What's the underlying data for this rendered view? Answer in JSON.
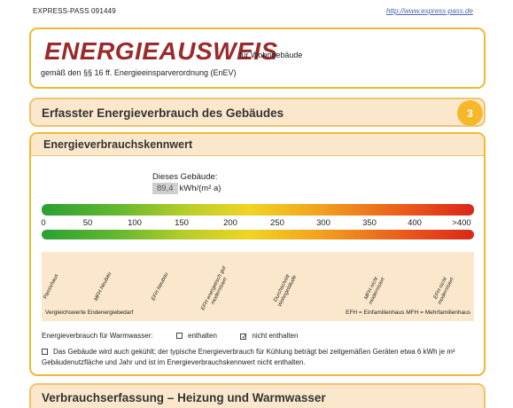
{
  "header": {
    "reference": "EXPRESS-PASS 091449",
    "url": "http://www.express-pass.de"
  },
  "title": {
    "main": "ENERGIEAUSWEIS",
    "sub": "für Wohngebäude",
    "law": "gemäß den §§ 16 ff. Energieeinsparverordnung (EnEV)"
  },
  "section": {
    "title": "Erfasster Energieverbrauch des Gebäudes",
    "number": "3"
  },
  "kennwert": {
    "title": "Energieverbrauchskennwert",
    "building_label": "Dieses Gebäude:",
    "value": "89,4",
    "unit": "kWh/(m² a)",
    "scale_ticks": [
      "0",
      "50",
      "100",
      "150",
      "200",
      "250",
      "300",
      "350",
      "400",
      ">400"
    ],
    "comparison_labels": [
      "Passivhaus",
      "MFH Neubau",
      "EFH Neubau",
      "EFH energetisch gut modernisiert",
      "Durchschnitt Wohngebäude",
      "MFH nicht modernisiert",
      "EFH nicht modernisiert"
    ],
    "comparison_title": "Vergleichswerte Endenergiebedarf",
    "legend": "EFH = Einfamilienhaus   MFH = Mehrfamilienhaus"
  },
  "warmwasser": {
    "label": "Energieverbrauch für Warmwasser:",
    "opt1": "enthalten",
    "opt2": "nicht enthalten",
    "opt2_mark": "✓"
  },
  "note": "Das Gebäude wird auch gekühlt; der typische Energieverbrauch für Kühlung beträgt bei zeitgemäßen Geräten etwa 6 kWh je m² Gebäudenutzfläche und Jahr und ist im Energieverbrauchskennwert nicht enthalten.",
  "bottom": {
    "title": "Verbrauchserfassung – Heizung und Warmwasser"
  },
  "colors": {
    "accent": "#f2b830",
    "title_red": "#9b2a2a",
    "panel": "#fbe8cc"
  }
}
